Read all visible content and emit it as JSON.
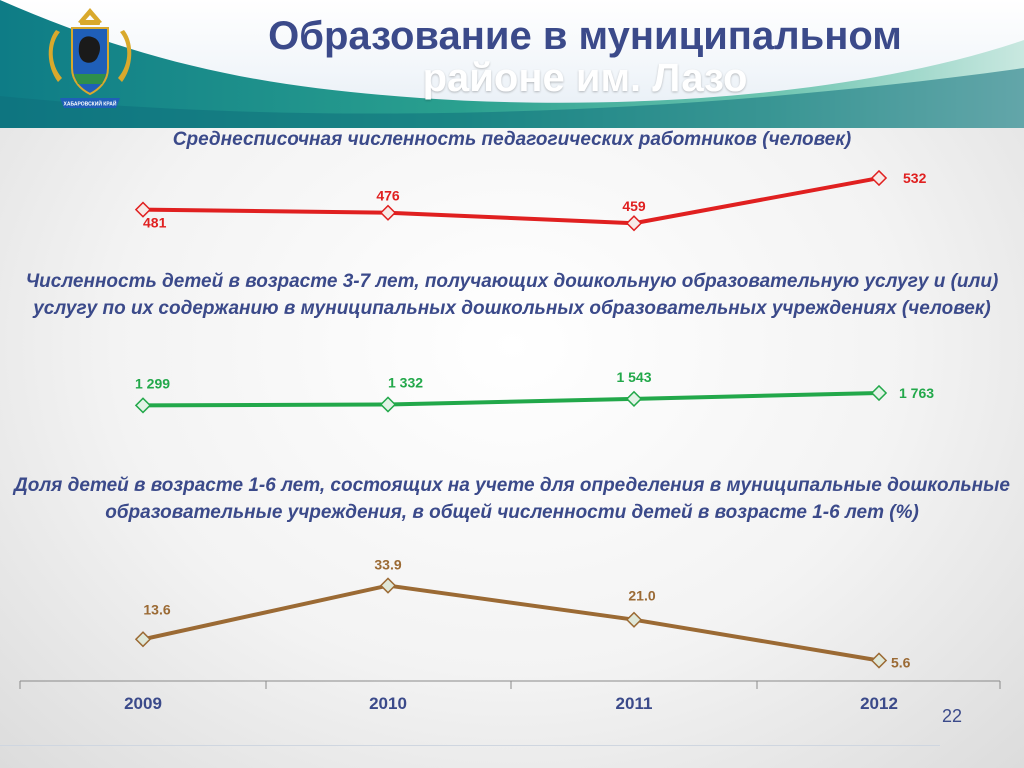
{
  "header": {
    "title_line1": "Образование в муниципальном",
    "title_line2": "районе им. Лазо"
  },
  "colors": {
    "title": "#3b4a8a",
    "series1": "#e02020",
    "series2": "#22a84a",
    "series3": "#9b6a34",
    "header_wave": "#1e8f8a"
  },
  "emblem": {
    "caption": "ХАБАРОВСКИЙ КРАЙ",
    "icon": "coat-of-arms-icon"
  },
  "page_number": "22",
  "chart_data": [
    {
      "type": "line",
      "title": "Среднесписочная численность педагогических работников (человек)",
      "categories": [
        "2009",
        "2010",
        "2011",
        "2012"
      ],
      "values": [
        481,
        476,
        459,
        532
      ],
      "labels": [
        "481",
        "476",
        "459",
        "532"
      ],
      "ylim": [
        440,
        545
      ]
    },
    {
      "type": "line",
      "title": "Численность детей в возрасте 3-7 лет, получающих дошкольную образовательную услугу и (или) услугу по их содержанию в муниципальных дошкольных образовательных учреждениях (человек)",
      "categories": [
        "2009",
        "2010",
        "2011",
        "2012"
      ],
      "values": [
        1299,
        1332,
        1543,
        1763
      ],
      "labels": [
        "1 299",
        "1 332",
        "1 543",
        "1 763"
      ],
      "ylim": [
        0,
        3000
      ]
    },
    {
      "type": "line",
      "title": "Доля детей в возрасте 1-6 лет, состоящих на учете для определения в муниципальные дошкольные образовательные учреждения, в общей численности детей в возрасте 1-6 лет (%)",
      "categories": [
        "2009",
        "2010",
        "2011",
        "2012"
      ],
      "values": [
        13.6,
        33.9,
        21.0,
        5.6
      ],
      "labels": [
        "13.6",
        "33.9",
        "21.0",
        "5.6"
      ],
      "ylim": [
        2,
        36
      ]
    }
  ]
}
